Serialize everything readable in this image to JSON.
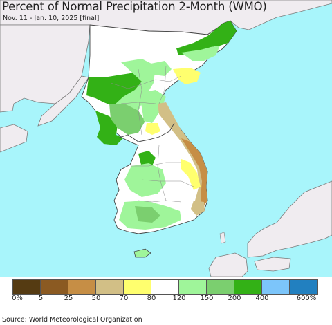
{
  "title": "Percent of Normal Precipitation 2-Month (WMO)",
  "subtitle": "Nov. 11 - Jan. 10, 2025 [final]",
  "source": "Source: World Meteorological Organization",
  "map": {
    "colors": {
      "ocean": "#a8f5fb",
      "land_outside": "#f0ecf0",
      "border": "#555555"
    }
  },
  "legend": {
    "colors": [
      "#553b12",
      "#8b5a22",
      "#c68e45",
      "#d2bf86",
      "#ffff6e",
      "#ffffff",
      "#9ff59a",
      "#7bcf6f",
      "#33b116",
      "#7cc5fa",
      "#2280c0"
    ],
    "tick_labels": [
      "0%",
      "5",
      "25",
      "50",
      "70",
      "80",
      "120",
      "150",
      "200",
      "400",
      "600%"
    ]
  }
}
